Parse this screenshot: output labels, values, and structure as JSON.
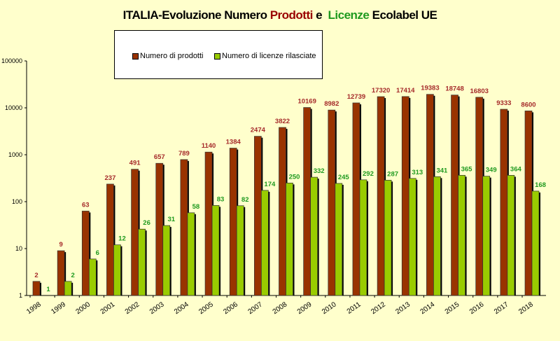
{
  "chart_data": {
    "type": "bar",
    "title": {
      "part1": "ITALIA-Evoluzione Numero",
      "part2": "Prodotti",
      "part3": "e",
      "part4": "Licenze",
      "part5": "Ecolabel UE"
    },
    "categories": [
      "1998",
      "1999",
      "2000",
      "2001",
      "2002",
      "2003",
      "2004",
      "2005",
      "2006",
      "2007",
      "2008",
      "2009",
      "2010",
      "2011",
      "2012",
      "2013",
      "2014",
      "2015",
      "2016",
      "2017",
      "2018"
    ],
    "series": [
      {
        "name": "Numero di prodotti",
        "color": "#993300",
        "label_color": "#a52a2a",
        "values": [
          2,
          9,
          63,
          237,
          491,
          657,
          789,
          1140,
          1384,
          2474,
          3822,
          10169,
          8982,
          12739,
          17320,
          17414,
          19383,
          18748,
          16803,
          9333,
          8600
        ]
      },
      {
        "name": "Numero di licenze rilasciate",
        "color": "#99cc00",
        "label_color": "#1f9a1f",
        "values": [
          1,
          2,
          6,
          12,
          26,
          31,
          58,
          83,
          82,
          174,
          250,
          332,
          245,
          292,
          287,
          313,
          341,
          365,
          349,
          364,
          168
        ]
      }
    ],
    "y_scale": "log",
    "ylim": [
      1,
      100000
    ],
    "y_ticks": [
      "1",
      "10",
      "100",
      "1000",
      "10000",
      "100000"
    ],
    "grid": false,
    "legend_position": "top",
    "title_colors": {
      "black": "#000000",
      "red": "#990000",
      "green": "#1f9a1f"
    }
  }
}
